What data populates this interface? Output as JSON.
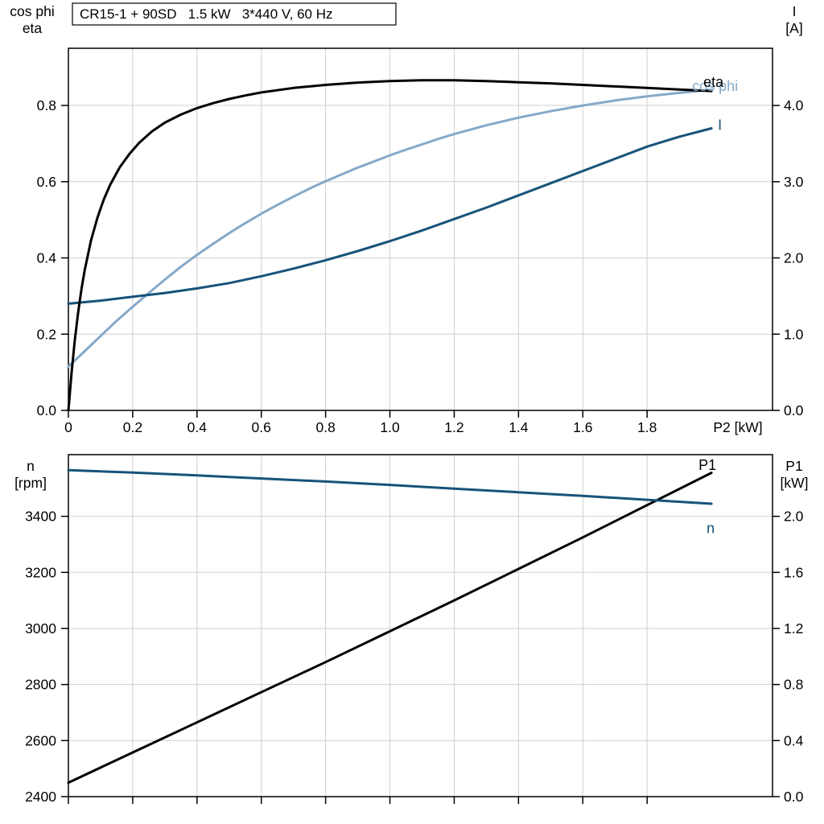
{
  "title_box": "CR15-1 + 90SD   1.5 kW   3*440 V, 60 Hz",
  "colors": {
    "black": "#000000",
    "dark_blue": "#175379",
    "light_blue": "#85a9c9",
    "grid": "#cfcfcf",
    "frame": "#000000",
    "background": "#ffffff"
  },
  "chart_data": [
    {
      "type": "line",
      "panel": "top",
      "title": "CR15-1 + 90SD   1.5 kW   3*440 V, 60 Hz",
      "x_axis": {
        "label": "P2 [kW]",
        "min": 0,
        "max": 2.19,
        "ticks": [
          0,
          0.2,
          0.4,
          0.6,
          0.8,
          1.0,
          1.2,
          1.4,
          1.6,
          1.8
        ],
        "tick_labels": [
          "0",
          "0.2",
          "0.4",
          "0.6",
          "0.8",
          "1.0",
          "1.2",
          "1.4",
          "1.6",
          "1.8"
        ],
        "show_tick_labels": true
      },
      "y_axis_left": {
        "label_lines": [
          "cos phi",
          "eta"
        ],
        "min": 0,
        "max": 0.95,
        "ticks": [
          0,
          0.2,
          0.4,
          0.6,
          0.8
        ],
        "tick_labels": [
          "0.0",
          "0.2",
          "0.4",
          "0.6",
          "0.8"
        ]
      },
      "y_axis_right": {
        "label_lines": [
          "I",
          "[A]"
        ],
        "min": 0,
        "max": 4.75,
        "ticks": [
          0,
          1,
          2,
          3,
          4
        ],
        "tick_labels": [
          "0.0",
          "1.0",
          "2.0",
          "3.0",
          "4.0"
        ]
      },
      "series": [
        {
          "name": "cos phi",
          "axis": "left",
          "color_key": "light_blue",
          "label": "cos phi",
          "label_pos": {
            "x": 1.94,
            "y": 0.838
          },
          "points": [
            [
              0,
              0.115
            ],
            [
              0.05,
              0.155
            ],
            [
              0.1,
              0.195
            ],
            [
              0.15,
              0.235
            ],
            [
              0.2,
              0.272
            ],
            [
              0.25,
              0.308
            ],
            [
              0.3,
              0.343
            ],
            [
              0.35,
              0.377
            ],
            [
              0.4,
              0.408
            ],
            [
              0.45,
              0.437
            ],
            [
              0.5,
              0.465
            ],
            [
              0.55,
              0.491
            ],
            [
              0.6,
              0.516
            ],
            [
              0.65,
              0.539
            ],
            [
              0.7,
              0.561
            ],
            [
              0.75,
              0.582
            ],
            [
              0.8,
              0.601
            ],
            [
              0.85,
              0.619
            ],
            [
              0.9,
              0.637
            ],
            [
              0.95,
              0.653
            ],
            [
              1.0,
              0.669
            ],
            [
              1.05,
              0.684
            ],
            [
              1.1,
              0.698
            ],
            [
              1.15,
              0.712
            ],
            [
              1.2,
              0.725
            ],
            [
              1.3,
              0.748
            ],
            [
              1.4,
              0.768
            ],
            [
              1.5,
              0.785
            ],
            [
              1.6,
              0.8
            ],
            [
              1.7,
              0.813
            ],
            [
              1.8,
              0.824
            ],
            [
              1.9,
              0.833
            ],
            [
              2.0,
              0.841
            ]
          ]
        },
        {
          "name": "I",
          "axis": "right",
          "color_key": "dark_blue",
          "label": "I",
          "label_pos": {
            "x": 2.02,
            "y": 3.68
          },
          "points": [
            [
              0,
              1.4
            ],
            [
              0.1,
              1.44
            ],
            [
              0.2,
              1.49
            ],
            [
              0.3,
              1.54
            ],
            [
              0.4,
              1.6
            ],
            [
              0.5,
              1.67
            ],
            [
              0.6,
              1.76
            ],
            [
              0.7,
              1.86
            ],
            [
              0.8,
              1.97
            ],
            [
              0.9,
              2.09
            ],
            [
              1.0,
              2.22
            ],
            [
              1.1,
              2.36
            ],
            [
              1.2,
              2.51
            ],
            [
              1.3,
              2.66
            ],
            [
              1.4,
              2.82
            ],
            [
              1.5,
              2.98
            ],
            [
              1.6,
              3.14
            ],
            [
              1.7,
              3.3
            ],
            [
              1.8,
              3.46
            ],
            [
              1.9,
              3.59
            ],
            [
              2.0,
              3.7
            ]
          ]
        },
        {
          "name": "eta",
          "axis": "left",
          "color_key": "black",
          "label": "eta",
          "label_pos": {
            "x": 1.975,
            "y": 0.849
          },
          "points": [
            [
              0,
              0
            ],
            [
              0.01,
              0.1
            ],
            [
              0.02,
              0.185
            ],
            [
              0.03,
              0.255
            ],
            [
              0.04,
              0.315
            ],
            [
              0.05,
              0.365
            ],
            [
              0.07,
              0.445
            ],
            [
              0.09,
              0.505
            ],
            [
              0.11,
              0.553
            ],
            [
              0.13,
              0.592
            ],
            [
              0.16,
              0.638
            ],
            [
              0.19,
              0.673
            ],
            [
              0.22,
              0.702
            ],
            [
              0.26,
              0.732
            ],
            [
              0.3,
              0.755
            ],
            [
              0.35,
              0.776
            ],
            [
              0.4,
              0.793
            ],
            [
              0.45,
              0.806
            ],
            [
              0.5,
              0.817
            ],
            [
              0.55,
              0.826
            ],
            [
              0.6,
              0.834
            ],
            [
              0.7,
              0.846
            ],
            [
              0.8,
              0.854
            ],
            [
              0.9,
              0.86
            ],
            [
              1.0,
              0.864
            ],
            [
              1.1,
              0.866
            ],
            [
              1.2,
              0.866
            ],
            [
              1.3,
              0.864
            ],
            [
              1.4,
              0.861
            ],
            [
              1.5,
              0.858
            ],
            [
              1.6,
              0.854
            ],
            [
              1.7,
              0.85
            ],
            [
              1.8,
              0.846
            ],
            [
              1.9,
              0.842
            ],
            [
              2.0,
              0.838
            ]
          ]
        }
      ]
    },
    {
      "type": "line",
      "panel": "bottom",
      "title": "",
      "x_axis": {
        "label": "",
        "min": 0,
        "max": 2.19,
        "ticks": [
          0,
          0.2,
          0.4,
          0.6,
          0.8,
          1.0,
          1.2,
          1.4,
          1.6,
          1.8
        ],
        "tick_labels": [],
        "show_tick_labels": false
      },
      "y_axis_left": {
        "label_lines": [
          "n",
          "[rpm]"
        ],
        "min": 2400,
        "max": 3620,
        "ticks": [
          2400,
          2600,
          2800,
          3000,
          3200,
          3400
        ],
        "tick_labels": [
          "2400",
          "2600",
          "2800",
          "3000",
          "3200",
          "3400"
        ]
      },
      "y_axis_right": {
        "label_lines": [
          "P1",
          "[kW]"
        ],
        "min": 0,
        "max": 2.44,
        "ticks": [
          0,
          0.4,
          0.8,
          1.2,
          1.6,
          2.0
        ],
        "tick_labels": [
          "0.0",
          "0.4",
          "0.8",
          "1.2",
          "1.6",
          "2.0"
        ]
      },
      "series": [
        {
          "name": "P1",
          "axis": "right",
          "color_key": "black",
          "label": "P1",
          "label_pos": {
            "x": 1.96,
            "y": 2.33
          },
          "points": [
            [
              0,
              0.1
            ],
            [
              0.2,
              0.315
            ],
            [
              0.4,
              0.53
            ],
            [
              0.6,
              0.745
            ],
            [
              0.8,
              0.96
            ],
            [
              1.0,
              1.18
            ],
            [
              1.2,
              1.4
            ],
            [
              1.4,
              1.625
            ],
            [
              1.6,
              1.85
            ],
            [
              1.8,
              2.08
            ],
            [
              2.0,
              2.31
            ]
          ]
        },
        {
          "name": "n",
          "axis": "left",
          "color_key": "dark_blue",
          "label": "n",
          "label_pos": {
            "x": 1.985,
            "y": 3340
          },
          "points": [
            [
              0,
              3565
            ],
            [
              0.2,
              3556
            ],
            [
              0.4,
              3546
            ],
            [
              0.6,
              3535
            ],
            [
              0.8,
              3524
            ],
            [
              1.0,
              3512
            ],
            [
              1.2,
              3499
            ],
            [
              1.4,
              3486
            ],
            [
              1.6,
              3473
            ],
            [
              1.8,
              3459
            ],
            [
              2.0,
              3445
            ]
          ]
        }
      ]
    }
  ]
}
